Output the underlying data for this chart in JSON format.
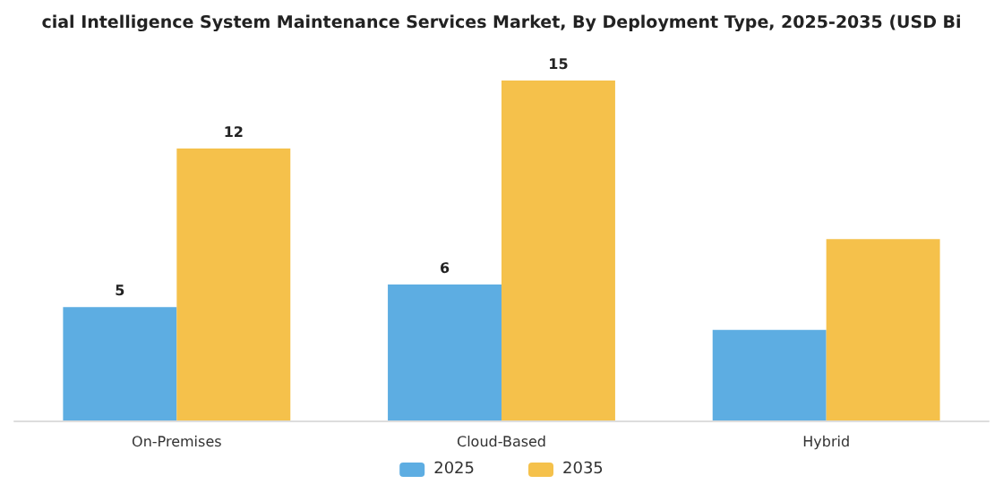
{
  "chart_data": {
    "type": "bar",
    "title": "cial Intelligence System Maintenance Services Market, By Deployment Type, 2025-2035 (USD Bi",
    "categories": [
      "On-Premises",
      "Cloud-Based",
      "Hybrid"
    ],
    "series": [
      {
        "name": "2025",
        "color": "#5dade2",
        "values": [
          5,
          6,
          4
        ],
        "value_labels": [
          "5",
          "6",
          null
        ]
      },
      {
        "name": "2035",
        "color": "#f5c14b",
        "values": [
          12,
          15,
          8
        ],
        "value_labels": [
          "12",
          "15",
          null
        ]
      }
    ],
    "legend": "bottom"
  }
}
